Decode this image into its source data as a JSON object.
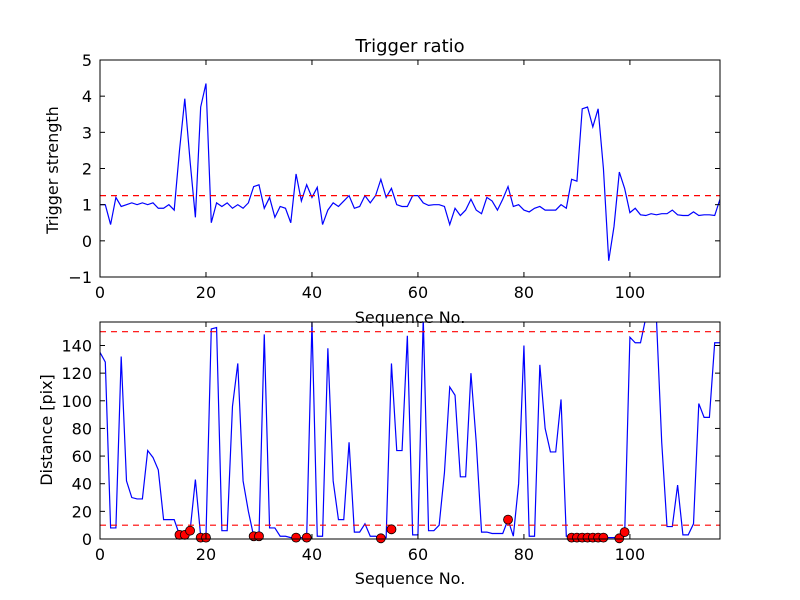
{
  "chart_data": [
    {
      "type": "line",
      "title": "Trigger ratio",
      "xlabel": "Sequence No.",
      "ylabel": "Trigger strength",
      "xlim": [
        0,
        117
      ],
      "ylim": [
        -1,
        5
      ],
      "xticks": [
        "0",
        "20",
        "40",
        "60",
        "80",
        "100"
      ],
      "yticks": [
        "−1",
        "0",
        "1",
        "2",
        "3",
        "4",
        "5"
      ],
      "xtick_values": [
        0,
        20,
        40,
        60,
        80,
        100
      ],
      "ytick_values": [
        -1,
        0,
        1,
        2,
        3,
        4,
        5
      ],
      "grid": false,
      "threshold": 1.25,
      "line_color": "#0000ff",
      "threshold_color": "#ff0000",
      "series": [
        {
          "values": [
            1.0,
            1.0,
            0.45,
            1.2,
            0.95,
            1.0,
            1.05,
            1.0,
            1.05,
            1.0,
            1.05,
            0.9,
            0.9,
            1.0,
            0.85,
            2.5,
            3.93,
            2.2,
            0.65,
            3.7,
            4.35,
            0.5,
            1.05,
            0.95,
            1.05,
            0.9,
            1.0,
            0.9,
            1.05,
            1.5,
            1.55,
            0.9,
            1.2,
            0.65,
            0.95,
            0.9,
            0.5,
            1.85,
            1.1,
            1.55,
            1.2,
            1.48,
            0.45,
            0.85,
            1.05,
            0.95,
            1.1,
            1.25,
            0.9,
            0.95,
            1.25,
            1.05,
            1.25,
            1.7,
            1.2,
            1.45,
            1.0,
            0.95,
            0.95,
            1.25,
            1.25,
            1.05,
            0.98,
            1.0,
            1.0,
            0.95,
            0.45,
            0.9,
            0.7,
            0.85,
            1.15,
            0.85,
            0.75,
            1.2,
            1.1,
            0.85,
            1.15,
            1.5,
            0.95,
            1.0,
            0.85,
            0.8,
            0.9,
            0.95,
            0.85,
            0.85,
            0.85,
            1.0,
            0.9,
            1.7,
            1.65,
            3.65,
            3.7,
            3.15,
            3.65,
            2.0,
            -0.55,
            0.4,
            1.9,
            1.45,
            0.78,
            0.9,
            0.72,
            0.7,
            0.75,
            0.72,
            0.75,
            0.75,
            0.85,
            0.72,
            0.7,
            0.7,
            0.8,
            0.7,
            0.72,
            0.72,
            0.7,
            1.15
          ]
        }
      ]
    },
    {
      "type": "line",
      "title": "",
      "xlabel": "Sequence No.",
      "ylabel": "Distance [pix]",
      "xlim": [
        0,
        117
      ],
      "ylim": [
        0,
        157
      ],
      "xticks": [
        "0",
        "20",
        "40",
        "60",
        "80",
        "100"
      ],
      "yticks": [
        "0",
        "20",
        "40",
        "60",
        "80",
        "100",
        "120",
        "140"
      ],
      "xtick_values": [
        0,
        20,
        40,
        60,
        80,
        100
      ],
      "ytick_values": [
        0,
        20,
        40,
        60,
        80,
        100,
        120,
        140
      ],
      "grid": false,
      "thresholds": [
        150,
        10
      ],
      "line_color": "#0000ff",
      "threshold_color": "#ff0000",
      "marker_color": "#ff0000",
      "series": [
        {
          "values": [
            135,
            128,
            8,
            8,
            132,
            42,
            30,
            29,
            29,
            64,
            59,
            50,
            14,
            14,
            14,
            3,
            5,
            6,
            43,
            2,
            2,
            152,
            153,
            6,
            6,
            96,
            127,
            42,
            20,
            2,
            2,
            148,
            8,
            8,
            2,
            2,
            1,
            1,
            1,
            1,
            157,
            2,
            2,
            138,
            42,
            14,
            14,
            70,
            5,
            5,
            11,
            2,
            2,
            1,
            1,
            127,
            64,
            64,
            147,
            3,
            3,
            160,
            6,
            6,
            10,
            48,
            110,
            104,
            45,
            45,
            120,
            70,
            5,
            5,
            4,
            4,
            4,
            14,
            2,
            40,
            140,
            2,
            2,
            126,
            80,
            63,
            63,
            101,
            2,
            2,
            2,
            2,
            1,
            1,
            1,
            1,
            1,
            1,
            1,
            2,
            146,
            142,
            142,
            160,
            160,
            160,
            70,
            9,
            9,
            39,
            3,
            3,
            11,
            98,
            88,
            88,
            142,
            142
          ]
        },
        {
          "name": "markers",
          "x": [
            15,
            16,
            17,
            19,
            20,
            29,
            30,
            37,
            39,
            53,
            55,
            77,
            89,
            90,
            91,
            92,
            93,
            94,
            95,
            98,
            99
          ],
          "values": [
            3,
            3,
            6,
            1,
            1,
            2,
            2,
            1,
            1,
            0.5,
            7,
            14,
            1,
            1,
            1,
            1,
            1,
            1,
            1,
            0.5,
            5
          ]
        }
      ]
    }
  ]
}
